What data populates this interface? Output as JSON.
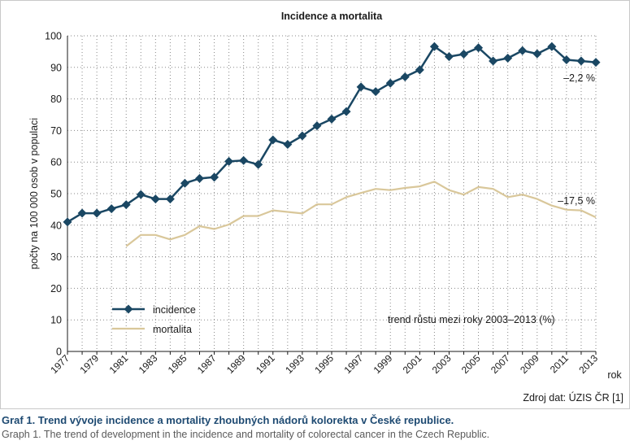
{
  "chart_data": {
    "type": "line",
    "title": "Incidence a mortalita",
    "xlabel": "rok",
    "ylabel": "počty na 100 000 osob v populaci",
    "ylim": [
      0,
      100
    ],
    "yticks": [
      0,
      10,
      20,
      30,
      40,
      50,
      60,
      70,
      80,
      90,
      100
    ],
    "xticks": [
      "1977",
      "1979",
      "1981",
      "1983",
      "1985",
      "1987",
      "1989",
      "1991",
      "1993",
      "1995",
      "1997",
      "1999",
      "2001",
      "2003",
      "2005",
      "2007",
      "2009",
      "2011",
      "2013"
    ],
    "x": [
      1977,
      1978,
      1979,
      1980,
      1981,
      1982,
      1983,
      1984,
      1985,
      1986,
      1987,
      1988,
      1989,
      1990,
      1991,
      1992,
      1993,
      1994,
      1995,
      1996,
      1997,
      1998,
      1999,
      2000,
      2001,
      2002,
      2003,
      2004,
      2005,
      2006,
      2007,
      2008,
      2009,
      2010,
      2011,
      2012,
      2013
    ],
    "grid": true,
    "legend_position": "bottom-left",
    "series": [
      {
        "name": "incidence",
        "color": "#1a4763",
        "marker": "diamond",
        "values": [
          41.0,
          43.8,
          43.8,
          45.2,
          46.5,
          49.7,
          48.3,
          48.3,
          53.3,
          54.8,
          55.2,
          60.2,
          60.5,
          59.2,
          67.0,
          65.6,
          68.3,
          71.5,
          73.6,
          76.0,
          83.8,
          82.3,
          85.0,
          87.0,
          89.2,
          96.6,
          93.4,
          94.2,
          96.2,
          92.0,
          92.9,
          95.3,
          94.3,
          96.6,
          92.4,
          92.0,
          91.6
        ]
      },
      {
        "name": "mortalita",
        "color": "#d9c79a",
        "marker": "none",
        "values": [
          null,
          null,
          null,
          null,
          33.3,
          36.9,
          36.9,
          35.5,
          36.9,
          39.7,
          38.8,
          40.2,
          42.9,
          42.9,
          44.7,
          44.2,
          43.7,
          46.6,
          46.6,
          48.9,
          50.2,
          51.5,
          51.1,
          51.8,
          52.3,
          53.8,
          51.1,
          49.7,
          52.1,
          51.5,
          48.9,
          49.7,
          48.3,
          46.2,
          44.9,
          44.7,
          42.5
        ]
      }
    ],
    "annotations": [
      {
        "text": "–2,2 %",
        "series": "incidence"
      },
      {
        "text": "–17,5 %",
        "series": "mortalita"
      }
    ],
    "note": "trend růstu mezi roky 2003–2013 (%)",
    "source": "Zdroj dat: ÚZIS ČR [1]"
  },
  "caption": {
    "title": "Graf 1. Trend vývoje incidence a mortality zhoubných nádorů kolorekta v České republice.",
    "subtitle": "Graph 1. The trend of development in the incidence and mortality of colorectal cancer in the Czech Republic."
  }
}
